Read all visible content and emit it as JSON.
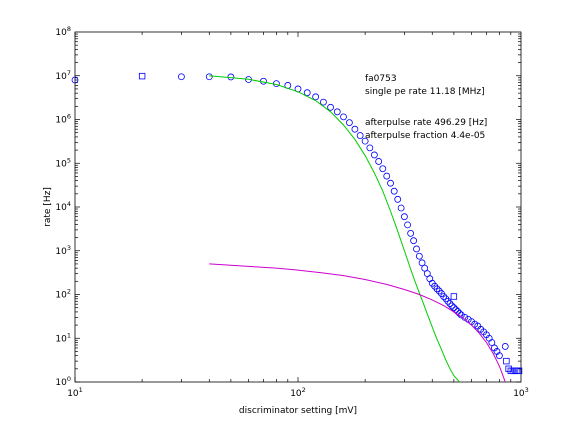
{
  "chart_data": {
    "type": "scatter",
    "title": "",
    "xlabel": "discriminator setting [mV]",
    "ylabel": "rate [Hz]",
    "xscale": "log",
    "yscale": "log",
    "xlim": [
      10,
      1000
    ],
    "ylim": [
      1,
      100000000
    ],
    "x_ticks": [
      {
        "value": 10,
        "base": "10",
        "exp": "1"
      },
      {
        "value": 100,
        "base": "10",
        "exp": "2"
      },
      {
        "value": 1000,
        "base": "10",
        "exp": "3"
      }
    ],
    "y_ticks": [
      {
        "value": 1,
        "base": "10",
        "exp": "0"
      },
      {
        "value": 10,
        "base": "10",
        "exp": "1"
      },
      {
        "value": 100,
        "base": "10",
        "exp": "2"
      },
      {
        "value": 1000,
        "base": "10",
        "exp": "3"
      },
      {
        "value": 10000,
        "base": "10",
        "exp": "4"
      },
      {
        "value": 100000,
        "base": "10",
        "exp": "5"
      },
      {
        "value": 1000000,
        "base": "10",
        "exp": "6"
      },
      {
        "value": 10000000,
        "base": "10",
        "exp": "7"
      },
      {
        "value": 100000000,
        "base": "10",
        "exp": "8"
      }
    ],
    "grid": false,
    "annotations": [
      "fa0753",
      "single pe rate 11.18 [MHz]",
      "afterpulse rate 496.29 [Hz]",
      "afterpulse fraction 4.4e-05"
    ],
    "series": [
      {
        "marker": "circle",
        "color": "#0000ff",
        "points": [
          [
            10,
            8000000
          ],
          [
            30,
            9500000
          ],
          [
            40,
            9500000
          ],
          [
            50,
            9400000
          ],
          [
            60,
            8200000
          ],
          [
            70,
            7500000
          ],
          [
            80,
            6600000
          ],
          [
            90,
            6000000
          ],
          [
            100,
            5000000
          ],
          [
            110,
            4100000
          ],
          [
            120,
            3300000
          ],
          [
            130,
            2500000
          ],
          [
            140,
            1900000
          ],
          [
            150,
            1500000
          ],
          [
            160,
            1150000
          ],
          [
            170,
            850000
          ],
          [
            180,
            600000
          ],
          [
            190,
            430000
          ],
          [
            200,
            320000
          ],
          [
            210,
            225000
          ],
          [
            220,
            155000
          ],
          [
            230,
            110000
          ],
          [
            240,
            75000
          ],
          [
            250,
            51000
          ],
          [
            260,
            35000
          ],
          [
            270,
            23000
          ],
          [
            280,
            15000
          ],
          [
            290,
            9500
          ],
          [
            300,
            6000
          ],
          [
            310,
            3900
          ],
          [
            320,
            2500
          ],
          [
            330,
            1700
          ],
          [
            340,
            1100
          ],
          [
            350,
            750
          ],
          [
            360,
            530
          ],
          [
            370,
            400
          ],
          [
            380,
            300
          ],
          [
            390,
            230
          ],
          [
            400,
            180
          ],
          [
            410,
            155
          ],
          [
            420,
            135
          ],
          [
            430,
            120
          ],
          [
            440,
            105
          ],
          [
            450,
            90
          ],
          [
            460,
            80
          ],
          [
            470,
            70
          ],
          [
            480,
            62
          ],
          [
            490,
            55
          ],
          [
            500,
            50
          ],
          [
            510,
            45
          ],
          [
            520,
            41
          ],
          [
            530,
            37
          ],
          [
            540,
            34
          ],
          [
            560,
            30
          ],
          [
            580,
            27
          ],
          [
            600,
            24
          ],
          [
            620,
            21
          ],
          [
            640,
            19
          ],
          [
            660,
            16
          ],
          [
            680,
            14
          ],
          [
            700,
            12
          ],
          [
            720,
            10
          ],
          [
            740,
            8
          ],
          [
            760,
            6
          ],
          [
            780,
            5
          ],
          [
            800,
            4
          ],
          [
            850,
            6.5
          ]
        ]
      },
      {
        "marker": "square",
        "color": "#0000ff",
        "points": [
          [
            20,
            9800000
          ],
          [
            500,
            90
          ],
          [
            860,
            3
          ],
          [
            880,
            2
          ],
          [
            900,
            1.8
          ],
          [
            920,
            1.8
          ],
          [
            940,
            1.8
          ],
          [
            960,
            1.8
          ],
          [
            980,
            1.8
          ]
        ]
      },
      {
        "marker": "line",
        "color": "#00cc00",
        "points": [
          [
            40,
            10000000
          ],
          [
            60,
            8300000
          ],
          [
            80,
            6300000
          ],
          [
            100,
            4300000
          ],
          [
            120,
            2700000
          ],
          [
            140,
            1500000
          ],
          [
            160,
            750000
          ],
          [
            180,
            350000
          ],
          [
            200,
            150000
          ],
          [
            220,
            60000
          ],
          [
            240,
            23000
          ],
          [
            260,
            8000
          ],
          [
            280,
            2800
          ],
          [
            300,
            1000
          ],
          [
            320,
            380
          ],
          [
            340,
            160
          ],
          [
            360,
            75
          ],
          [
            380,
            36
          ],
          [
            400,
            18
          ],
          [
            420,
            9.5
          ],
          [
            440,
            5.5
          ],
          [
            460,
            3.2
          ],
          [
            480,
            2
          ],
          [
            500,
            1.4
          ],
          [
            530,
            1
          ]
        ]
      },
      {
        "marker": "line",
        "color": "#cc00cc",
        "points": [
          [
            40,
            500
          ],
          [
            60,
            440
          ],
          [
            80,
            400
          ],
          [
            100,
            360
          ],
          [
            130,
            310
          ],
          [
            160,
            270
          ],
          [
            200,
            220
          ],
          [
            250,
            170
          ],
          [
            300,
            130
          ],
          [
            350,
            100
          ],
          [
            400,
            75
          ],
          [
            450,
            56
          ],
          [
            500,
            40
          ],
          [
            550,
            29
          ],
          [
            600,
            20
          ],
          [
            650,
            13
          ],
          [
            700,
            8
          ],
          [
            750,
            4.5
          ],
          [
            800,
            2.3
          ],
          [
            830,
            1.4
          ],
          [
            850,
            1
          ]
        ]
      }
    ]
  }
}
